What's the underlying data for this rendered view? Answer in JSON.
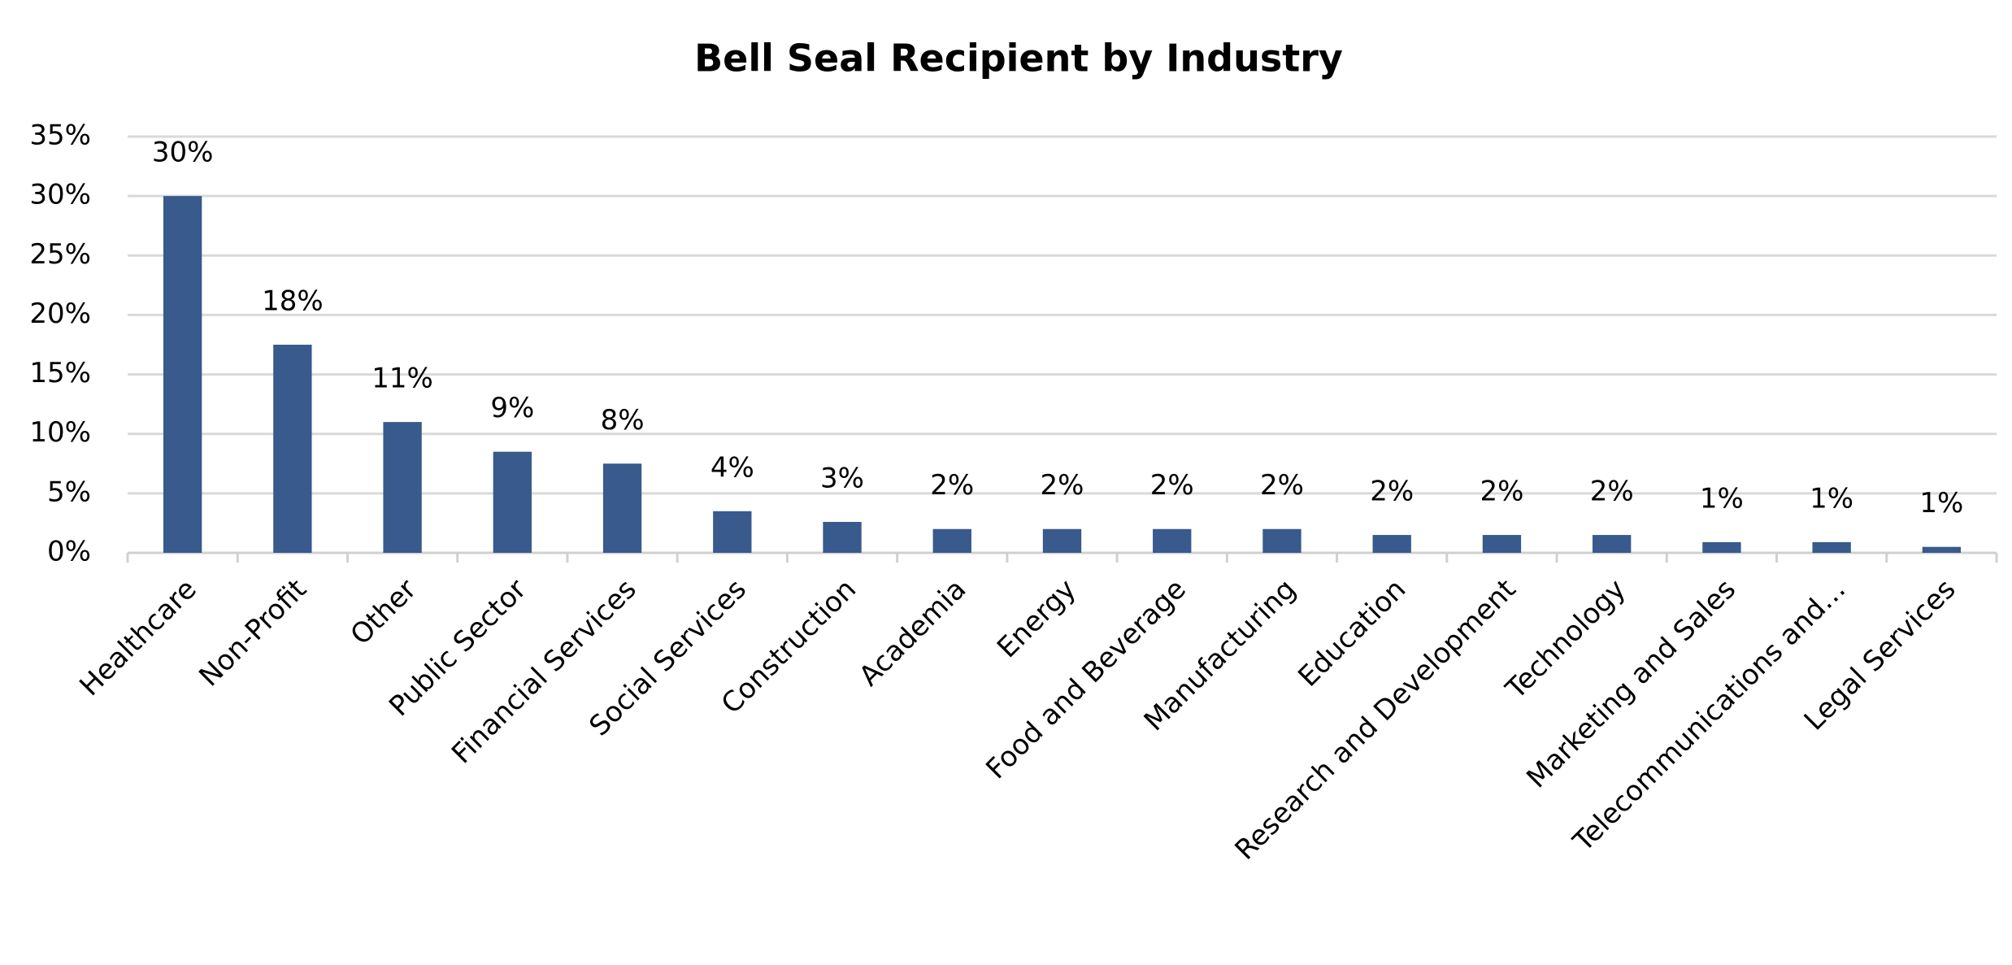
{
  "chart_data": {
    "type": "bar",
    "title": "Bell Seal Recipient by Industry",
    "categories": [
      "Healthcare",
      "Non-Profit",
      "Other",
      "Public Sector",
      "Financial Services",
      "Social Services",
      "Construction",
      "Academia",
      "Energy",
      "Food and Beverage",
      "Manufacturing",
      "Education",
      "Research and Development",
      "Technology",
      "Marketing and Sales",
      "Telecommunications and…",
      "Legal Services"
    ],
    "values": [
      30,
      17.5,
      11,
      8.5,
      7.5,
      3.5,
      2.6,
      2,
      2,
      2,
      2,
      1.5,
      1.5,
      1.5,
      0.9,
      0.9,
      0.5
    ],
    "value_labels": [
      "30%",
      "18%",
      "11%",
      "9%",
      "8%",
      "4%",
      "3%",
      "2%",
      "2%",
      "2%",
      "2%",
      "2%",
      "2%",
      "2%",
      "1%",
      "1%",
      "1%"
    ],
    "color": "#385a8c",
    "ylim": [
      0,
      35
    ],
    "yticks": [
      {
        "value": 0,
        "label": "0%"
      },
      {
        "value": 5,
        "label": "5%"
      },
      {
        "value": 10,
        "label": "10%"
      },
      {
        "value": 15,
        "label": "15%"
      },
      {
        "value": 20,
        "label": "20%"
      },
      {
        "value": 25,
        "label": "25%"
      },
      {
        "value": 30,
        "label": "30%"
      },
      {
        "value": 35,
        "label": "35%"
      }
    ],
    "grid": true
  }
}
